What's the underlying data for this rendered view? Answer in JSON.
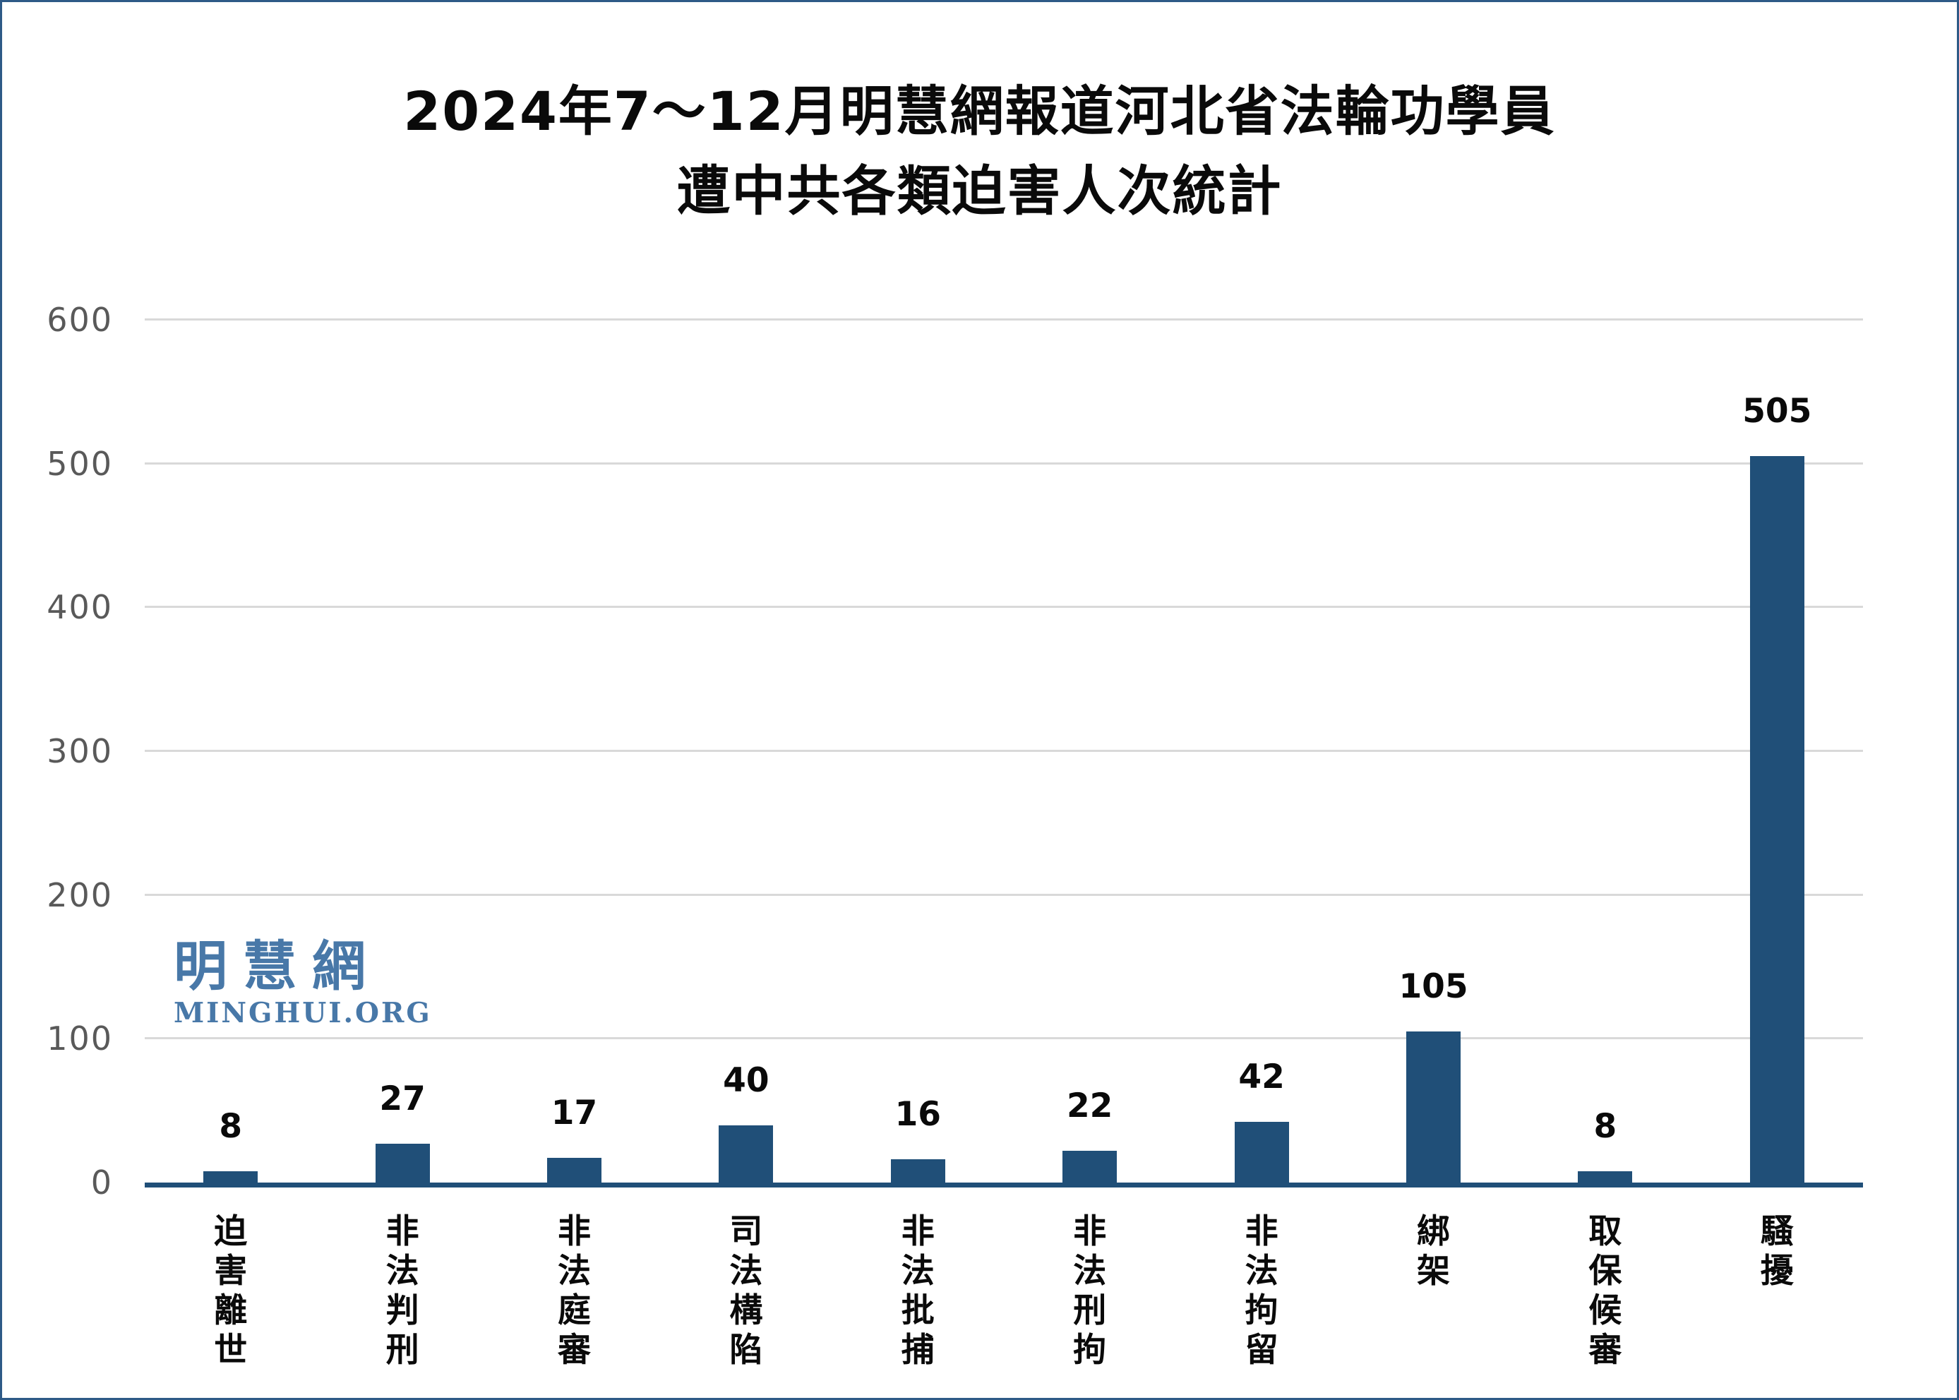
{
  "page": {
    "border_color": "#2e5a87",
    "background_color": "#ffffff"
  },
  "title": {
    "line1": "2024年7～12月明慧網報道河北省法輪功學員",
    "line2": "遭中共各類迫害人次統計"
  },
  "watermark": {
    "cjk": "明慧網",
    "latin": "MINGHUI.ORG",
    "color": "#4878a8"
  },
  "chart_data": {
    "type": "bar",
    "title": "2024年7～12月明慧網報道河北省法輪功學員遭中共各類迫害人次統計",
    "categories": [
      "迫害離世",
      "非法判刑",
      "非法庭審",
      "司法構陷",
      "非法批捕",
      "非法刑拘",
      "非法拘留",
      "綁架",
      "取保候審",
      "騷擾"
    ],
    "values": [
      8,
      27,
      17,
      40,
      16,
      22,
      42,
      105,
      8,
      505
    ],
    "value_labels": [
      "8",
      "27",
      "17",
      "40",
      "16",
      "22",
      "42",
      "105",
      "8",
      "505"
    ],
    "xlabel": "",
    "ylabel": "",
    "ylim": [
      0,
      600
    ],
    "yticks": [
      0,
      100,
      200,
      300,
      400,
      500,
      600
    ],
    "grid": true,
    "legend": false,
    "category_text_orientation": "vertical",
    "bar_color": "#204f78",
    "axis_color": "#204f78",
    "gridline_color": "#d9d9d9",
    "tick_label_color": "#595959",
    "value_label_color": "#0a0a0a"
  }
}
